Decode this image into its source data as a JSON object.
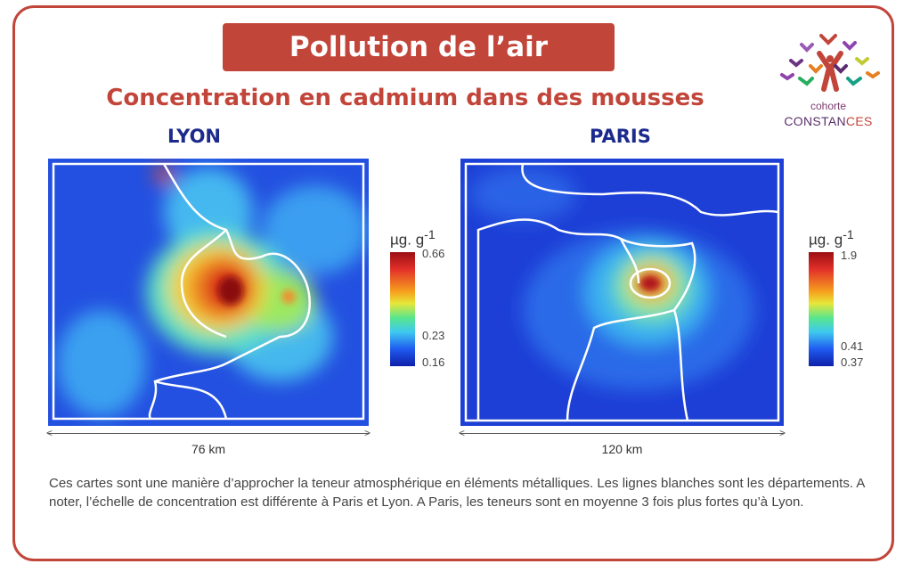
{
  "header": {
    "title": "Pollution de l’air",
    "subtitle": "Concentration en cadmium dans des mousses"
  },
  "logo": {
    "line1": "cohorte",
    "line2_main": "CONSTAN",
    "line2_accent": "CES"
  },
  "maps": [
    {
      "city": "LYON",
      "scale_label": "76 km",
      "legend": {
        "unit": "µg. g",
        "unit_exp": "-1",
        "ticks": [
          "0.66",
          "0.23",
          "0.16"
        ]
      }
    },
    {
      "city": "PARIS",
      "scale_label": "120 km",
      "legend": {
        "unit": "µg. g",
        "unit_exp": "-1",
        "ticks": [
          "1.9",
          "0.41",
          "0.37"
        ]
      }
    }
  ],
  "description": "Ces cartes sont une manière d’approcher la teneur atmosphérique en éléments métalliques. Les lignes blanches sont les départements. A noter, l’échelle de concentration est différente à Paris et Lyon. A Paris, les teneurs sont en moyenne 3 fois plus fortes qu’à Lyon.",
  "colors": {
    "accent": "#c2453a",
    "city": "#1b2a8c",
    "low": "#1f3fd6",
    "high": "#9a0f12"
  }
}
